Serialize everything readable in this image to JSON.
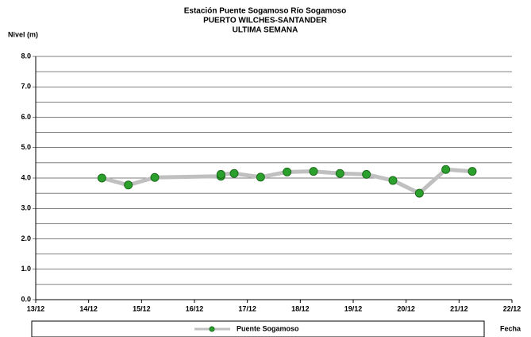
{
  "chart_data": {
    "type": "line",
    "title": "Estación Puente Sogamoso Río Sogamoso",
    "subtitle": "PUERTO WILCHES-SANTANDER",
    "subtitle2": "ULTIMA SEMANA",
    "y_label": "Nivel (m)",
    "x_label": "Fecha",
    "x": [
      14.25,
      14.75,
      15.25,
      16.5,
      16.5,
      16.75,
      17.25,
      17.75,
      18.25,
      18.75,
      19.25,
      19.75,
      20.25,
      20.75,
      21.25
    ],
    "series": [
      {
        "name": "Puente Sogamoso",
        "color": "#c0c0c0",
        "marker_color": "#2ca02c",
        "values": [
          4.0,
          3.77,
          4.02,
          4.06,
          4.12,
          4.15,
          4.03,
          4.2,
          4.22,
          4.15,
          4.12,
          3.92,
          3.5,
          4.28,
          4.22
        ]
      }
    ],
    "xlim": [
      13,
      22
    ],
    "xticks": [
      {
        "value": 13,
        "label": "13/12"
      },
      {
        "value": 14,
        "label": "14/12"
      },
      {
        "value": 15,
        "label": "15/12"
      },
      {
        "value": 16,
        "label": "16/12"
      },
      {
        "value": 17,
        "label": "17/12"
      },
      {
        "value": 18,
        "label": "18/12"
      },
      {
        "value": 19,
        "label": "19/12"
      },
      {
        "value": 20,
        "label": "20/12"
      },
      {
        "value": 21,
        "label": "21/12"
      },
      {
        "value": 22,
        "label": "22/12"
      }
    ],
    "ylim": [
      0,
      8
    ],
    "yticks": [
      {
        "value": 0,
        "label": "0.0"
      },
      {
        "value": 1,
        "label": "1.0"
      },
      {
        "value": 2,
        "label": "2.0"
      },
      {
        "value": 3,
        "label": "3.0"
      },
      {
        "value": 4,
        "label": "4.0"
      },
      {
        "value": 5,
        "label": "5.0"
      },
      {
        "value": 6,
        "label": "6.0"
      },
      {
        "value": 7,
        "label": "7.0"
      },
      {
        "value": 8,
        "label": "8.0"
      }
    ],
    "minor_yticks": [
      0.5,
      1.5,
      2.5,
      3.5,
      4.5,
      5.5,
      6.5,
      7.5
    ],
    "grid": true
  }
}
